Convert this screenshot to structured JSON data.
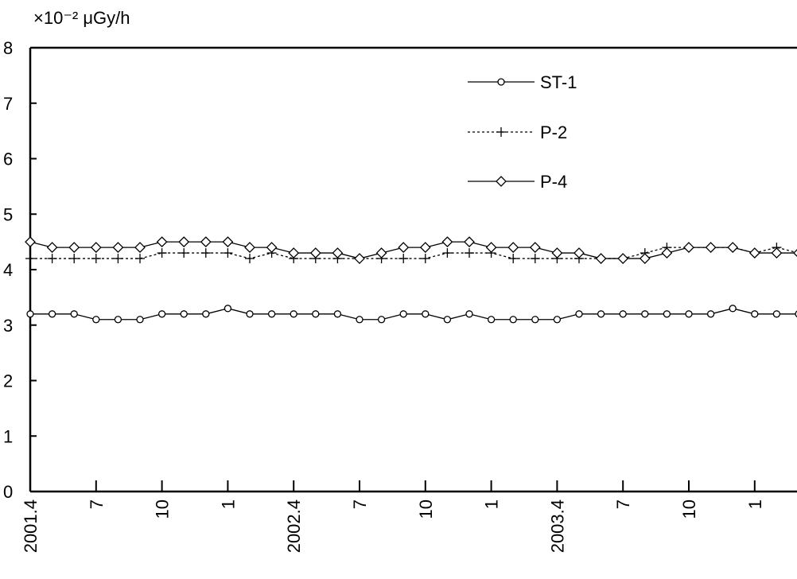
{
  "chart_data": {
    "type": "line",
    "unit_label": "×10⁻² μGy/h",
    "ylim": [
      0,
      8
    ],
    "yticks": [
      0,
      1,
      2,
      3,
      4,
      5,
      6,
      7,
      8
    ],
    "xtick_labels": [
      {
        "i": 0,
        "label": "2001.4"
      },
      {
        "i": 3,
        "label": "7"
      },
      {
        "i": 6,
        "label": "10"
      },
      {
        "i": 9,
        "label": "1"
      },
      {
        "i": 12,
        "label": "2002.4"
      },
      {
        "i": 15,
        "label": "7"
      },
      {
        "i": 18,
        "label": "10"
      },
      {
        "i": 21,
        "label": "1"
      },
      {
        "i": 24,
        "label": "2003.4"
      },
      {
        "i": 27,
        "label": "7"
      },
      {
        "i": 30,
        "label": "10"
      },
      {
        "i": 33,
        "label": "1"
      }
    ],
    "x_start": "2001-04",
    "grid": false,
    "legend_position": "top-right",
    "series": [
      {
        "name": "ST-1",
        "marker": "circle",
        "line": "solid",
        "values": [
          3.2,
          3.2,
          3.2,
          3.1,
          3.1,
          3.1,
          3.2,
          3.2,
          3.2,
          3.3,
          3.2,
          3.2,
          3.2,
          3.2,
          3.2,
          3.1,
          3.1,
          3.2,
          3.2,
          3.1,
          3.2,
          3.1,
          3.1,
          3.1,
          3.1,
          3.2,
          3.2,
          3.2,
          3.2,
          3.2,
          3.2,
          3.2,
          3.3,
          3.2,
          3.2,
          3.2
        ]
      },
      {
        "name": "P-2",
        "marker": "plus",
        "line": "dotted",
        "values": [
          4.2,
          4.2,
          4.2,
          4.2,
          4.2,
          4.2,
          4.3,
          4.3,
          4.3,
          4.3,
          4.2,
          4.3,
          4.2,
          4.2,
          4.2,
          4.2,
          4.2,
          4.2,
          4.2,
          4.3,
          4.3,
          4.3,
          4.2,
          4.2,
          4.2,
          4.2,
          4.2,
          4.2,
          4.3,
          4.4,
          4.4,
          4.4,
          4.4,
          4.3,
          4.4,
          4.3
        ]
      },
      {
        "name": "P-4",
        "marker": "diamond",
        "line": "solid",
        "values": [
          4.5,
          4.4,
          4.4,
          4.4,
          4.4,
          4.4,
          4.5,
          4.5,
          4.5,
          4.5,
          4.4,
          4.4,
          4.3,
          4.3,
          4.3,
          4.2,
          4.3,
          4.4,
          4.4,
          4.5,
          4.5,
          4.4,
          4.4,
          4.4,
          4.3,
          4.3,
          4.2,
          4.2,
          4.2,
          4.3,
          4.4,
          4.4,
          4.4,
          4.3,
          4.3,
          4.3
        ]
      }
    ]
  }
}
